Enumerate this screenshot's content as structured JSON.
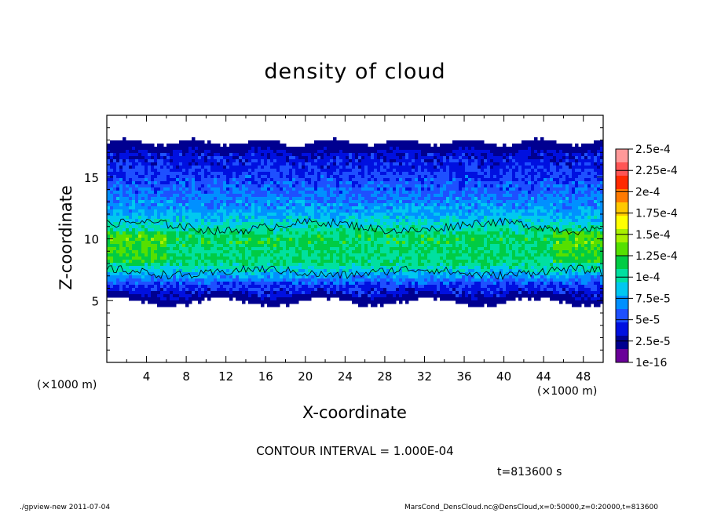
{
  "chart_data": {
    "type": "heatmap",
    "title": "density of cloud",
    "xlabel": "X-coordinate",
    "ylabel": "Z-coordinate",
    "x_unit": "(×1000 m)",
    "xlim": [
      0,
      50
    ],
    "ylim": [
      0,
      20
    ],
    "xticks": [
      "4",
      "8",
      "12",
      "16",
      "20",
      "24",
      "28",
      "32",
      "36",
      "40",
      "44",
      "48"
    ],
    "yticks": [
      "5",
      "10",
      "15"
    ],
    "colorbar": {
      "labels": [
        "2.5e-4",
        "2.25e-4",
        "2e-4",
        "1.75e-4",
        "1.5e-4",
        "1.25e-4",
        "1e-4",
        "7.5e-5",
        "5e-5",
        "2.5e-5",
        "1e-16"
      ],
      "colors": [
        "#ff9999",
        "#ff5555",
        "#ff2a00",
        "#ff7a00",
        "#ffc800",
        "#ffff00",
        "#a8f000",
        "#55e000",
        "#00cc44",
        "#00e0a0",
        "#00c8f0",
        "#0090ff",
        "#1e50ff",
        "#0010e0",
        "#000090",
        "#6a0099"
      ]
    },
    "cloud_profile": {
      "z": [
        4.8,
        5.4,
        6.2,
        7.0,
        8.0,
        9.0,
        10.0,
        11.0,
        12.0,
        13.5,
        15.0,
        16.2,
        17.0,
        17.5,
        18.0
      ],
      "density": [
        0.1,
        0.3,
        0.5,
        0.95,
        1.45,
        1.5,
        1.6,
        1.3,
        1.0,
        0.75,
        0.55,
        0.4,
        0.3,
        0.15,
        0.05
      ],
      "density_unit": "e-4"
    }
  },
  "annotations": {
    "contour_interval": "CONTOUR INTERVAL = 1.000E-04",
    "time": "t=813600 s",
    "footer_left": "./gpview-new   2011-07-04",
    "footer_right": "MarsCond_DensCloud.nc@DensCloud,x=0:50000,z=0:20000,t=813600"
  }
}
